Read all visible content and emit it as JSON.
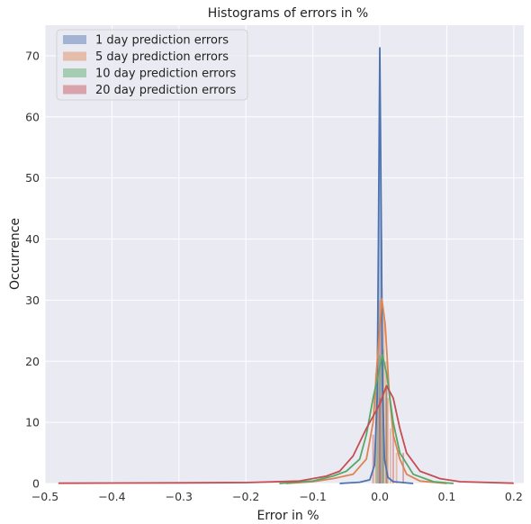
{
  "chart_data": {
    "type": "histogram",
    "title": "Histograms of errors in %",
    "xlabel": "Error in %",
    "ylabel": "Occurrence",
    "xlim": [
      -0.5,
      0.215
    ],
    "ylim": [
      0,
      75
    ],
    "xticks": [
      -0.5,
      -0.4,
      -0.3,
      -0.2,
      -0.1,
      0.0,
      0.1,
      0.2
    ],
    "xtick_labels": [
      "−0.5",
      "−0.4",
      "−0.3",
      "−0.2",
      "−0.1",
      "0.0",
      "0.1",
      "0.2"
    ],
    "yticks": [
      0,
      10,
      20,
      30,
      40,
      50,
      60,
      70
    ],
    "ytick_labels": [
      "0",
      "10",
      "20",
      "30",
      "40",
      "50",
      "60",
      "70"
    ],
    "grid": true,
    "legend_position": "top-left",
    "series": [
      {
        "name": "1 day prediction errors",
        "color": "#4c72b0",
        "kde": [
          [
            -0.06,
            0
          ],
          [
            -0.03,
            0.2
          ],
          [
            -0.015,
            0.6
          ],
          [
            -0.008,
            3
          ],
          [
            -0.004,
            14
          ],
          [
            -0.002,
            40
          ],
          [
            0.0,
            71.3
          ],
          [
            0.002,
            45
          ],
          [
            0.004,
            16
          ],
          [
            0.007,
            4
          ],
          [
            0.012,
            1
          ],
          [
            0.02,
            0.3
          ],
          [
            0.05,
            0
          ]
        ],
        "bars": [
          [
            -0.0025,
            30
          ],
          [
            0.0,
            60
          ],
          [
            0.0025,
            40
          ],
          [
            0.005,
            10
          ]
        ]
      },
      {
        "name": "5 day prediction errors",
        "color": "#dd8452",
        "kde": [
          [
            -0.14,
            0
          ],
          [
            -0.1,
            0.3
          ],
          [
            -0.07,
            0.8
          ],
          [
            -0.04,
            1.5
          ],
          [
            -0.02,
            4
          ],
          [
            -0.01,
            10
          ],
          [
            -0.004,
            20
          ],
          [
            0.003,
            30.2
          ],
          [
            0.008,
            26
          ],
          [
            0.014,
            15
          ],
          [
            0.02,
            8
          ],
          [
            0.03,
            4
          ],
          [
            0.04,
            1.5
          ],
          [
            0.06,
            0.4
          ],
          [
            0.1,
            0
          ]
        ],
        "bars": [
          [
            -0.006,
            18
          ],
          [
            -0.003,
            22
          ],
          [
            0.0,
            30
          ],
          [
            0.003,
            32
          ],
          [
            0.006,
            28
          ],
          [
            0.009,
            20
          ],
          [
            0.012,
            14
          ],
          [
            0.016,
            9
          ],
          [
            0.025,
            5
          ]
        ]
      },
      {
        "name": "10 day prediction errors",
        "color": "#55a868",
        "kde": [
          [
            -0.15,
            0
          ],
          [
            -0.1,
            0.4
          ],
          [
            -0.07,
            1.2
          ],
          [
            -0.05,
            2
          ],
          [
            -0.03,
            4
          ],
          [
            -0.02,
            8
          ],
          [
            -0.01,
            14
          ],
          [
            0.0,
            19
          ],
          [
            0.004,
            21
          ],
          [
            0.01,
            18
          ],
          [
            0.02,
            10
          ],
          [
            0.03,
            5
          ],
          [
            0.05,
            1.5
          ],
          [
            0.08,
            0.3
          ],
          [
            0.11,
            0
          ]
        ],
        "bars": [
          [
            -0.005,
            15
          ],
          [
            0.0,
            21
          ],
          [
            0.005,
            22
          ],
          [
            0.01,
            16
          ]
        ]
      },
      {
        "name": "20 day prediction errors",
        "color": "#c44e52",
        "kde": [
          [
            -0.48,
            0.05
          ],
          [
            -0.3,
            0.1
          ],
          [
            -0.2,
            0.15
          ],
          [
            -0.12,
            0.4
          ],
          [
            -0.08,
            1.2
          ],
          [
            -0.06,
            2
          ],
          [
            -0.04,
            4.5
          ],
          [
            -0.02,
            9
          ],
          [
            0.0,
            13
          ],
          [
            0.01,
            16
          ],
          [
            0.02,
            14
          ],
          [
            0.03,
            9
          ],
          [
            0.04,
            5
          ],
          [
            0.06,
            2
          ],
          [
            0.09,
            0.8
          ],
          [
            0.12,
            0.3
          ],
          [
            0.2,
            0.05
          ]
        ],
        "bars": [
          [
            -0.01,
            8
          ],
          [
            0.0,
            14
          ],
          [
            0.01,
            16
          ],
          [
            0.02,
            10
          ],
          [
            0.035,
            5
          ]
        ]
      }
    ]
  }
}
